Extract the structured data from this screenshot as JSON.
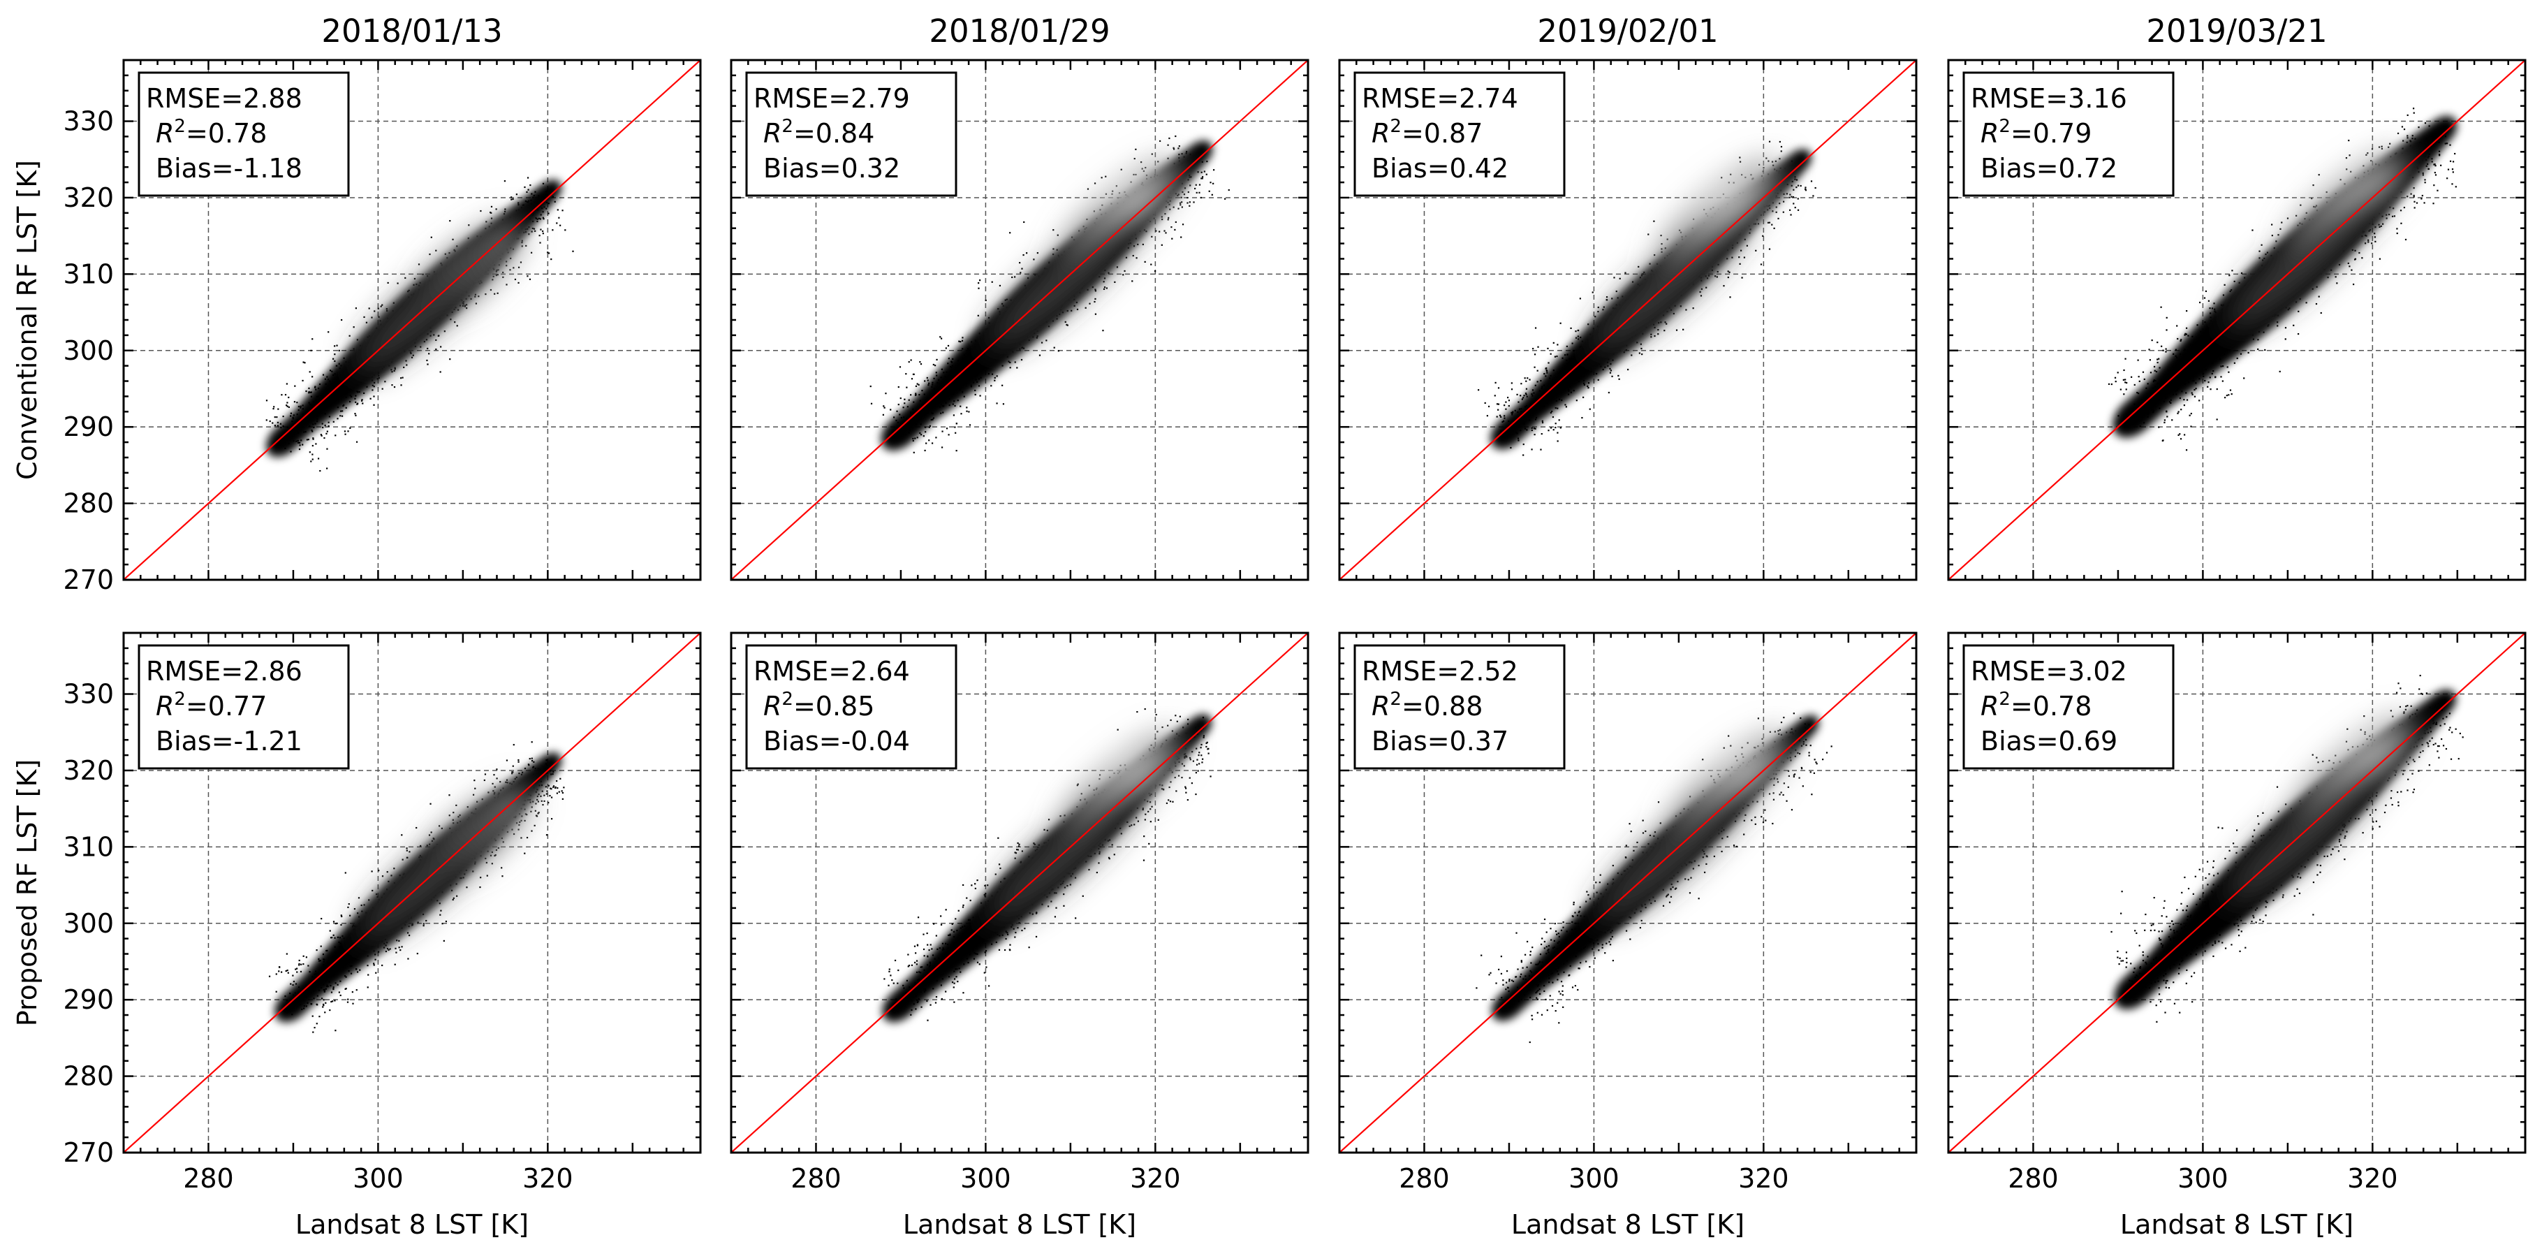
{
  "chart_data": {
    "type": "scatter",
    "layout": {
      "rows": 2,
      "cols": 4
    },
    "xlim": [
      270,
      338
    ],
    "ylim": [
      270,
      338
    ],
    "xticks": [
      280,
      300,
      320
    ],
    "yticks": [
      270,
      280,
      290,
      300,
      310,
      320,
      330
    ],
    "grid": true,
    "reference_line": {
      "slope": 1,
      "intercept": 0,
      "color": "#ff0000"
    },
    "column_titles": [
      "2018/01/13",
      "2018/01/29",
      "2019/02/01",
      "2019/03/21"
    ],
    "row_ylabels": [
      "Conventional RF LST [K]",
      "Proposed RF LST [K]"
    ],
    "xlabel": "Landsat 8 LST [K]",
    "panels": [
      {
        "row": 0,
        "col": 0,
        "stats": {
          "rmse": "RMSE=2.88",
          "r2": "0.78",
          "bias": "Bias=-1.18"
        },
        "cloud": {
          "x_range": [
            289,
            320
          ],
          "core": [
            310,
            310
          ],
          "spread": 3.0,
          "density_color": "#000000"
        }
      },
      {
        "row": 0,
        "col": 1,
        "stats": {
          "rmse": "RMSE=2.79",
          "r2": "0.84",
          "bias": "Bias=0.32"
        },
        "cloud": {
          "x_range": [
            290,
            325
          ],
          "core": [
            316,
            318
          ],
          "spread": 3.2,
          "density_color": "#000000"
        }
      },
      {
        "row": 0,
        "col": 2,
        "stats": {
          "rmse": "RMSE=2.74",
          "r2": "0.87",
          "bias": "Bias=0.42"
        },
        "cloud": {
          "x_range": [
            290,
            324
          ],
          "core": [
            315,
            318
          ],
          "spread": 3.0,
          "density_color": "#000000"
        }
      },
      {
        "row": 0,
        "col": 3,
        "stats": {
          "rmse": "RMSE=3.16",
          "r2": "0.79",
          "bias": "Bias=0.72"
        },
        "cloud": {
          "x_range": [
            292,
            328
          ],
          "core": [
            317,
            319
          ],
          "spread": 3.6,
          "density_color": "#000000"
        }
      },
      {
        "row": 1,
        "col": 0,
        "stats": {
          "rmse": "RMSE=2.86",
          "r2": "0.77",
          "bias": "Bias=-1.21"
        },
        "cloud": {
          "x_range": [
            290,
            320
          ],
          "core": [
            311,
            311
          ],
          "spread": 3.0,
          "density_color": "#000000"
        }
      },
      {
        "row": 1,
        "col": 1,
        "stats": {
          "rmse": "RMSE=2.64",
          "r2": "0.85",
          "bias": "Bias=-0.04"
        },
        "cloud": {
          "x_range": [
            290,
            325
          ],
          "core": [
            316,
            318
          ],
          "spread": 3.0,
          "density_color": "#000000"
        }
      },
      {
        "row": 1,
        "col": 2,
        "stats": {
          "rmse": "RMSE=2.52",
          "r2": "0.88",
          "bias": "Bias=0.37"
        },
        "cloud": {
          "x_range": [
            290,
            325
          ],
          "core": [
            316,
            318
          ],
          "spread": 2.8,
          "density_color": "#000000"
        }
      },
      {
        "row": 1,
        "col": 3,
        "stats": {
          "rmse": "RMSE=3.02",
          "r2": "0.78",
          "bias": "Bias=0.69"
        },
        "cloud": {
          "x_range": [
            292,
            328
          ],
          "core": [
            318,
            320
          ],
          "spread": 3.4,
          "density_color": "#000000"
        }
      }
    ]
  }
}
